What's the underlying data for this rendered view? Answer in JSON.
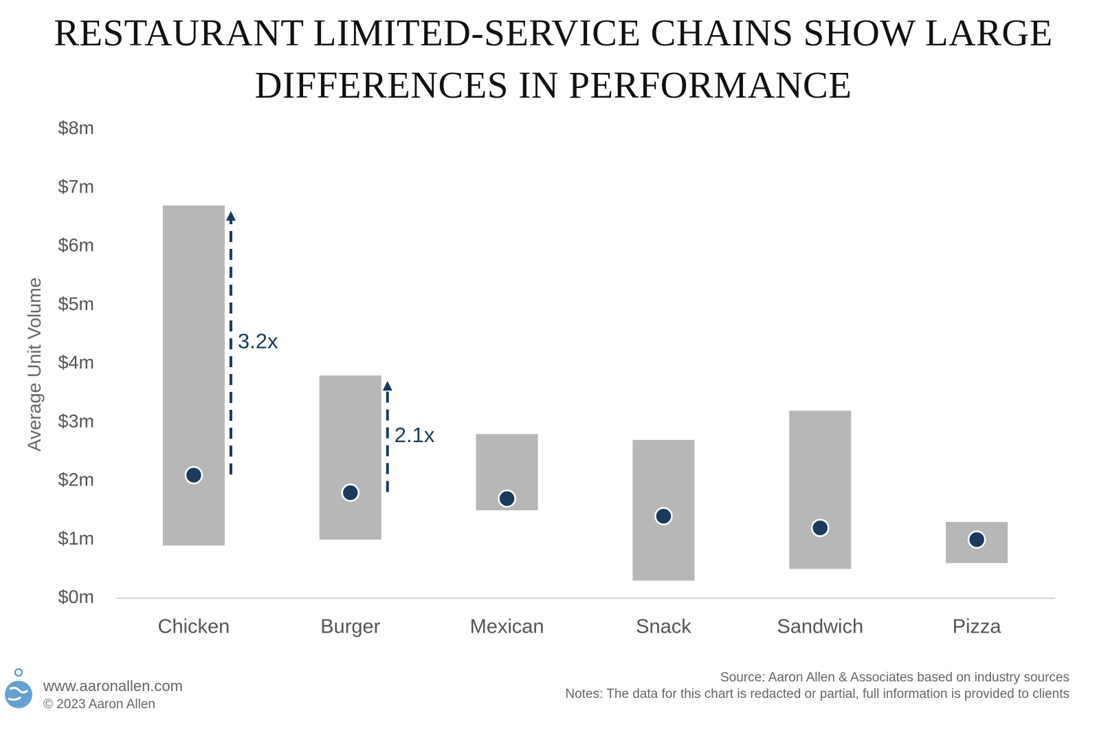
{
  "chart_data": {
    "type": "range-dot",
    "title": "RESTAURANT LIMITED-SERVICE CHAINS SHOW LARGE DIFFERENCES IN PERFORMANCE",
    "y_label": "Average Unit Volume",
    "categories": [
      "Chicken",
      "Burger",
      "Mexican",
      "Snack",
      "Sandwich",
      "Pizza"
    ],
    "low": [
      0.9,
      1.0,
      1.5,
      0.3,
      0.5,
      0.6
    ],
    "high": [
      6.7,
      3.8,
      2.8,
      2.7,
      3.2,
      1.3
    ],
    "values": [
      2.1,
      1.8,
      1.7,
      1.4,
      1.2,
      1.0
    ],
    "bar_color": "#b7b7b7",
    "color": "#1b3a5c",
    "ylim": [
      0,
      8
    ],
    "yticks": [
      {
        "value": 0,
        "label": "$0m"
      },
      {
        "value": 1,
        "label": "$1m"
      },
      {
        "value": 2,
        "label": "$2m"
      },
      {
        "value": 3,
        "label": "$3m"
      },
      {
        "value": 4,
        "label": "$4m"
      },
      {
        "value": 5,
        "label": "$5m"
      },
      {
        "value": 6,
        "label": "$6m"
      },
      {
        "value": 7,
        "label": "$7m"
      },
      {
        "value": 8,
        "label": "$8m"
      }
    ],
    "annotations": [
      {
        "text": "3.2x",
        "category": "Chicken"
      },
      {
        "text": "2.1x",
        "category": "Burger"
      }
    ]
  },
  "footer": {
    "website": "www.aaronallen.com",
    "copyright": "© 2023 Aaron Allen",
    "source": "Source: Aaron Allen & Associates based on industry sources",
    "notes": "Notes: The data for this chart is redacted or partial, full information is provided to clients"
  }
}
